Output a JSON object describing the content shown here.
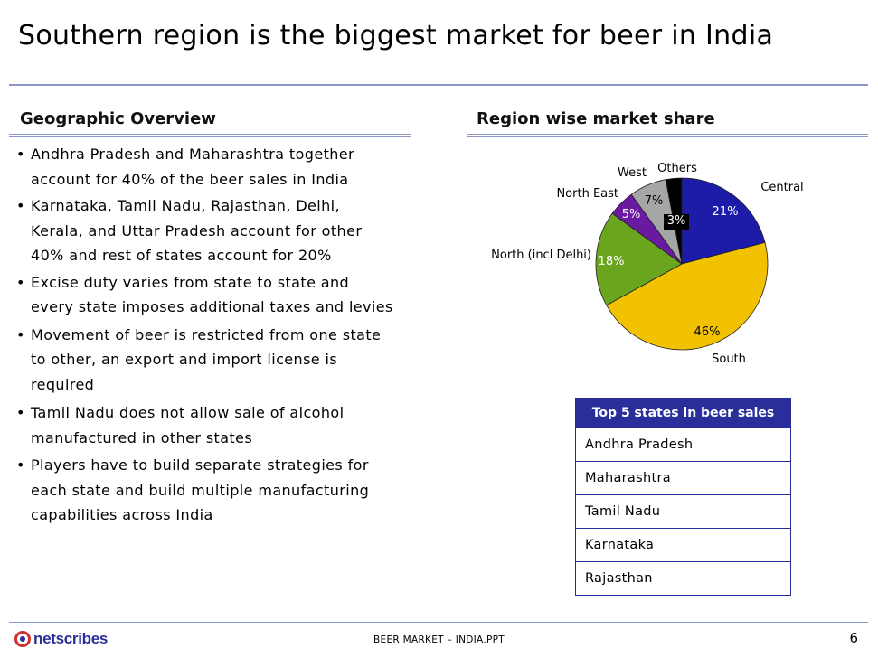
{
  "title": "Southern region is the biggest market for beer in India",
  "left_section": {
    "heading": "Geographic Overview",
    "bullet_char": "•",
    "bullets": [
      [
        "Andhra Pradesh and Maharashtra together",
        "account for 40% of the beer sales in India"
      ],
      [
        "Karnataka, Tamil Nadu, Rajasthan, Delhi,",
        "Kerala, and Uttar Pradesh account for other",
        "40% and rest of states account for 20%"
      ],
      [
        "Excise duty varies from state to state and",
        "every state imposes additional taxes and levies"
      ],
      [
        "Movement of beer is restricted from one state",
        "to other, an export and import license is",
        "required"
      ],
      [
        "Tamil Nadu does not allow sale of alcohol",
        "manufactured in other states"
      ],
      [
        "Players have to build separate strategies for",
        "each state and build multiple manufacturing",
        "capabilities across India"
      ]
    ]
  },
  "right_section": {
    "heading": "Region wise market share"
  },
  "chart_data": {
    "type": "pie",
    "title": "Region wise market share",
    "slices": [
      {
        "name": "Central",
        "value": 21,
        "label": "21%",
        "color": "#1c1ca8"
      },
      {
        "name": "South",
        "value": 46,
        "label": "46%",
        "color": "#f2c200"
      },
      {
        "name": "North (incl Delhi)",
        "value": 18,
        "label": "18%",
        "color": "#6aa51e"
      },
      {
        "name": "North East",
        "value": 5,
        "label": "5%",
        "color": "#6a1aa0"
      },
      {
        "name": "West",
        "value": 7,
        "label": "7%",
        "color": "#a6a6a6"
      },
      {
        "name": "Others",
        "value": 3,
        "label": "3%",
        "color": "#000000"
      }
    ],
    "start": "top",
    "direction": "clockwise"
  },
  "top_states": {
    "header": "Top 5 states in beer sales",
    "rows": [
      "Andhra Pradesh",
      "Maharashtra",
      "Tamil Nadu",
      "Karnataka",
      "Rajasthan"
    ]
  },
  "footer": {
    "logo_text": "netscribes",
    "center_text": "BEER MARKET – INDIA.PPT",
    "page_number": "6"
  },
  "colors": {
    "accent": "#2a2e9b",
    "rule": "#8c96c8",
    "logo_red": "#d0312d"
  }
}
